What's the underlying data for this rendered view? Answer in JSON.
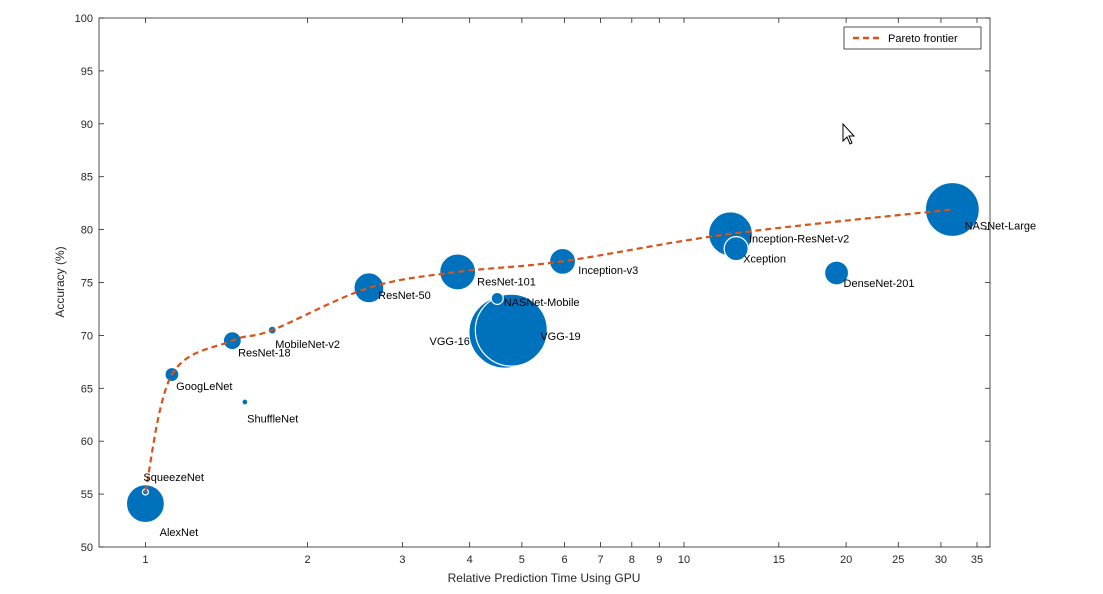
{
  "chart_data": {
    "type": "scatter",
    "xlabel": "Relative Prediction Time Using GPU",
    "ylabel": "Accuracy (%)",
    "x_scale": "log",
    "xlim": [
      0.82,
      37
    ],
    "ylim": [
      50,
      100
    ],
    "x_ticks": [
      1,
      2,
      3,
      4,
      5,
      6,
      7,
      8,
      9,
      10,
      15,
      20,
      25,
      30,
      35
    ],
    "y_ticks": [
      50,
      55,
      60,
      65,
      70,
      75,
      80,
      85,
      90,
      95,
      100
    ],
    "grid": false,
    "legend_position": "top-right",
    "colors": {
      "bubble": "#0072BD",
      "pareto": "#D95319",
      "axis": "#262626"
    },
    "points": [
      {
        "name": "AlexNet",
        "x": 1.0,
        "y": 54.1,
        "r": 19
      },
      {
        "name": "SqueezeNet",
        "x": 1.0,
        "y": 55.2,
        "r": 3
      },
      {
        "name": "GoogLeNet",
        "x": 1.12,
        "y": 66.3,
        "r": 7
      },
      {
        "name": "ShuffleNet",
        "x": 1.53,
        "y": 63.7,
        "r": 3
      },
      {
        "name": "ResNet-18",
        "x": 1.45,
        "y": 69.5,
        "r": 9
      },
      {
        "name": "MobileNet-v2",
        "x": 1.72,
        "y": 70.5,
        "r": 4
      },
      {
        "name": "ResNet-50",
        "x": 2.6,
        "y": 74.5,
        "r": 15
      },
      {
        "name": "ResNet-101",
        "x": 3.8,
        "y": 76.0,
        "r": 18
      },
      {
        "name": "NASNet-Mobile",
        "x": 4.5,
        "y": 73.5,
        "r": 6
      },
      {
        "name": "VGG-16",
        "x": 4.65,
        "y": 70.3,
        "r": 36
      },
      {
        "name": "VGG-19",
        "x": 4.78,
        "y": 70.5,
        "r": 36
      },
      {
        "name": "Inception-v3",
        "x": 5.95,
        "y": 77.0,
        "r": 13
      },
      {
        "name": "Inception-ResNet-v2",
        "x": 12.2,
        "y": 79.6,
        "r": 22
      },
      {
        "name": "Xception",
        "x": 12.5,
        "y": 78.2,
        "r": 12
      },
      {
        "name": "DenseNet-201",
        "x": 19.2,
        "y": 75.9,
        "r": 12
      },
      {
        "name": "NASNet-Large",
        "x": 31.5,
        "y": 81.9,
        "r": 27
      }
    ],
    "series": [
      {
        "name": "Pareto frontier",
        "x": [
          1.0,
          1.12,
          1.45,
          1.72,
          2.6,
          3.8,
          5.95,
          12.2,
          31.5
        ],
        "y": [
          55.2,
          66.3,
          69.5,
          70.5,
          74.5,
          76.0,
          77.0,
          79.6,
          81.9
        ]
      }
    ]
  }
}
